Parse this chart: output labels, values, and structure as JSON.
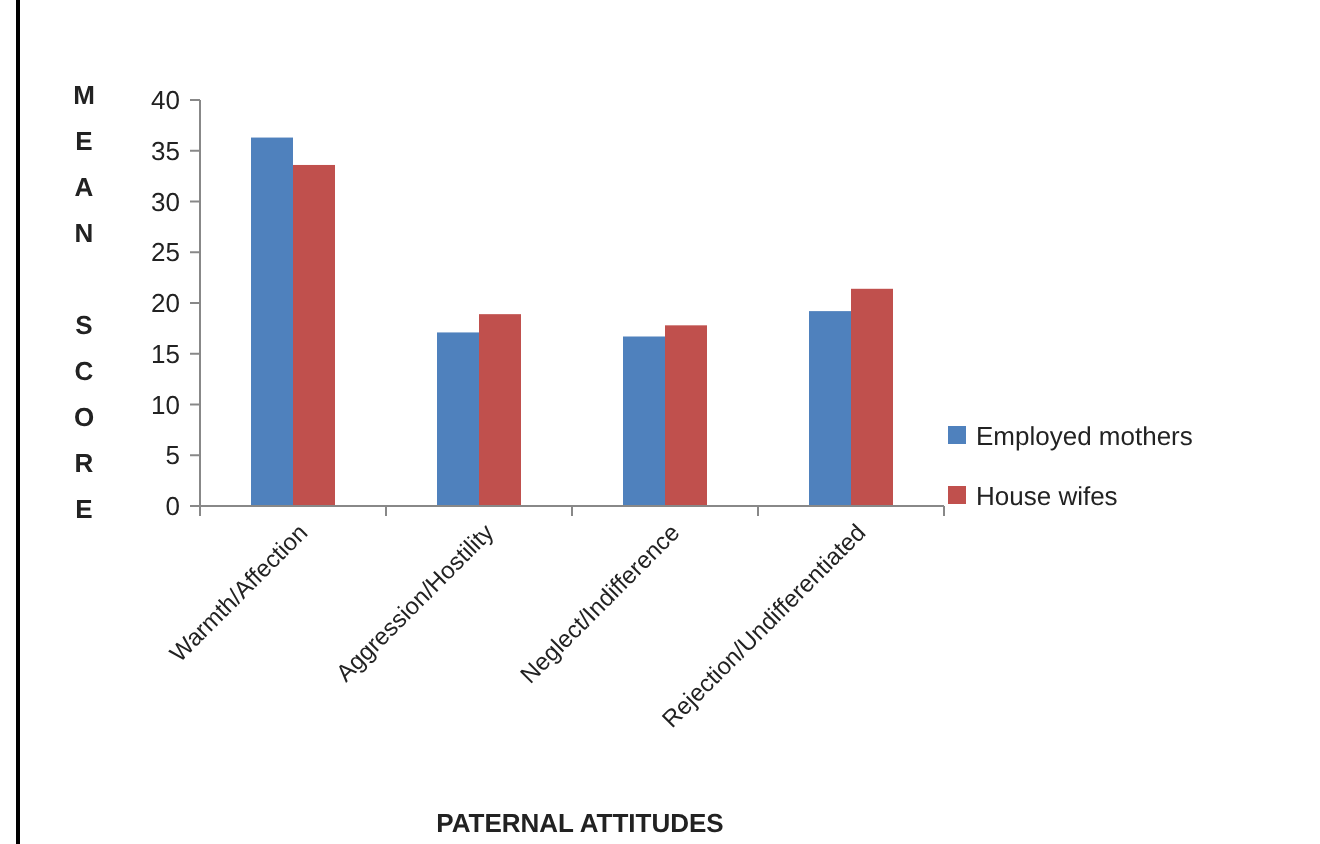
{
  "chart_data": {
    "type": "bar",
    "xlabel": "PATERNAL ATTITUDES",
    "ylabel": "MEAN SCORE",
    "categories": [
      "Warmth/Affection",
      "Aggression/Hostility",
      "Neglect/Indifference",
      "Rejection/Undifferentiated"
    ],
    "series": [
      {
        "name": "Employed mothers",
        "color": "#4f81bd",
        "values": [
          36.3,
          17.1,
          16.7,
          19.2
        ]
      },
      {
        "name": "House wifes",
        "color": "#c0504d",
        "values": [
          33.6,
          18.9,
          17.8,
          21.4
        ]
      }
    ],
    "ylim": [
      0,
      40
    ],
    "yticks": [
      0,
      5,
      10,
      15,
      20,
      25,
      30,
      35,
      40
    ],
    "grid": false,
    "legend": "right"
  }
}
